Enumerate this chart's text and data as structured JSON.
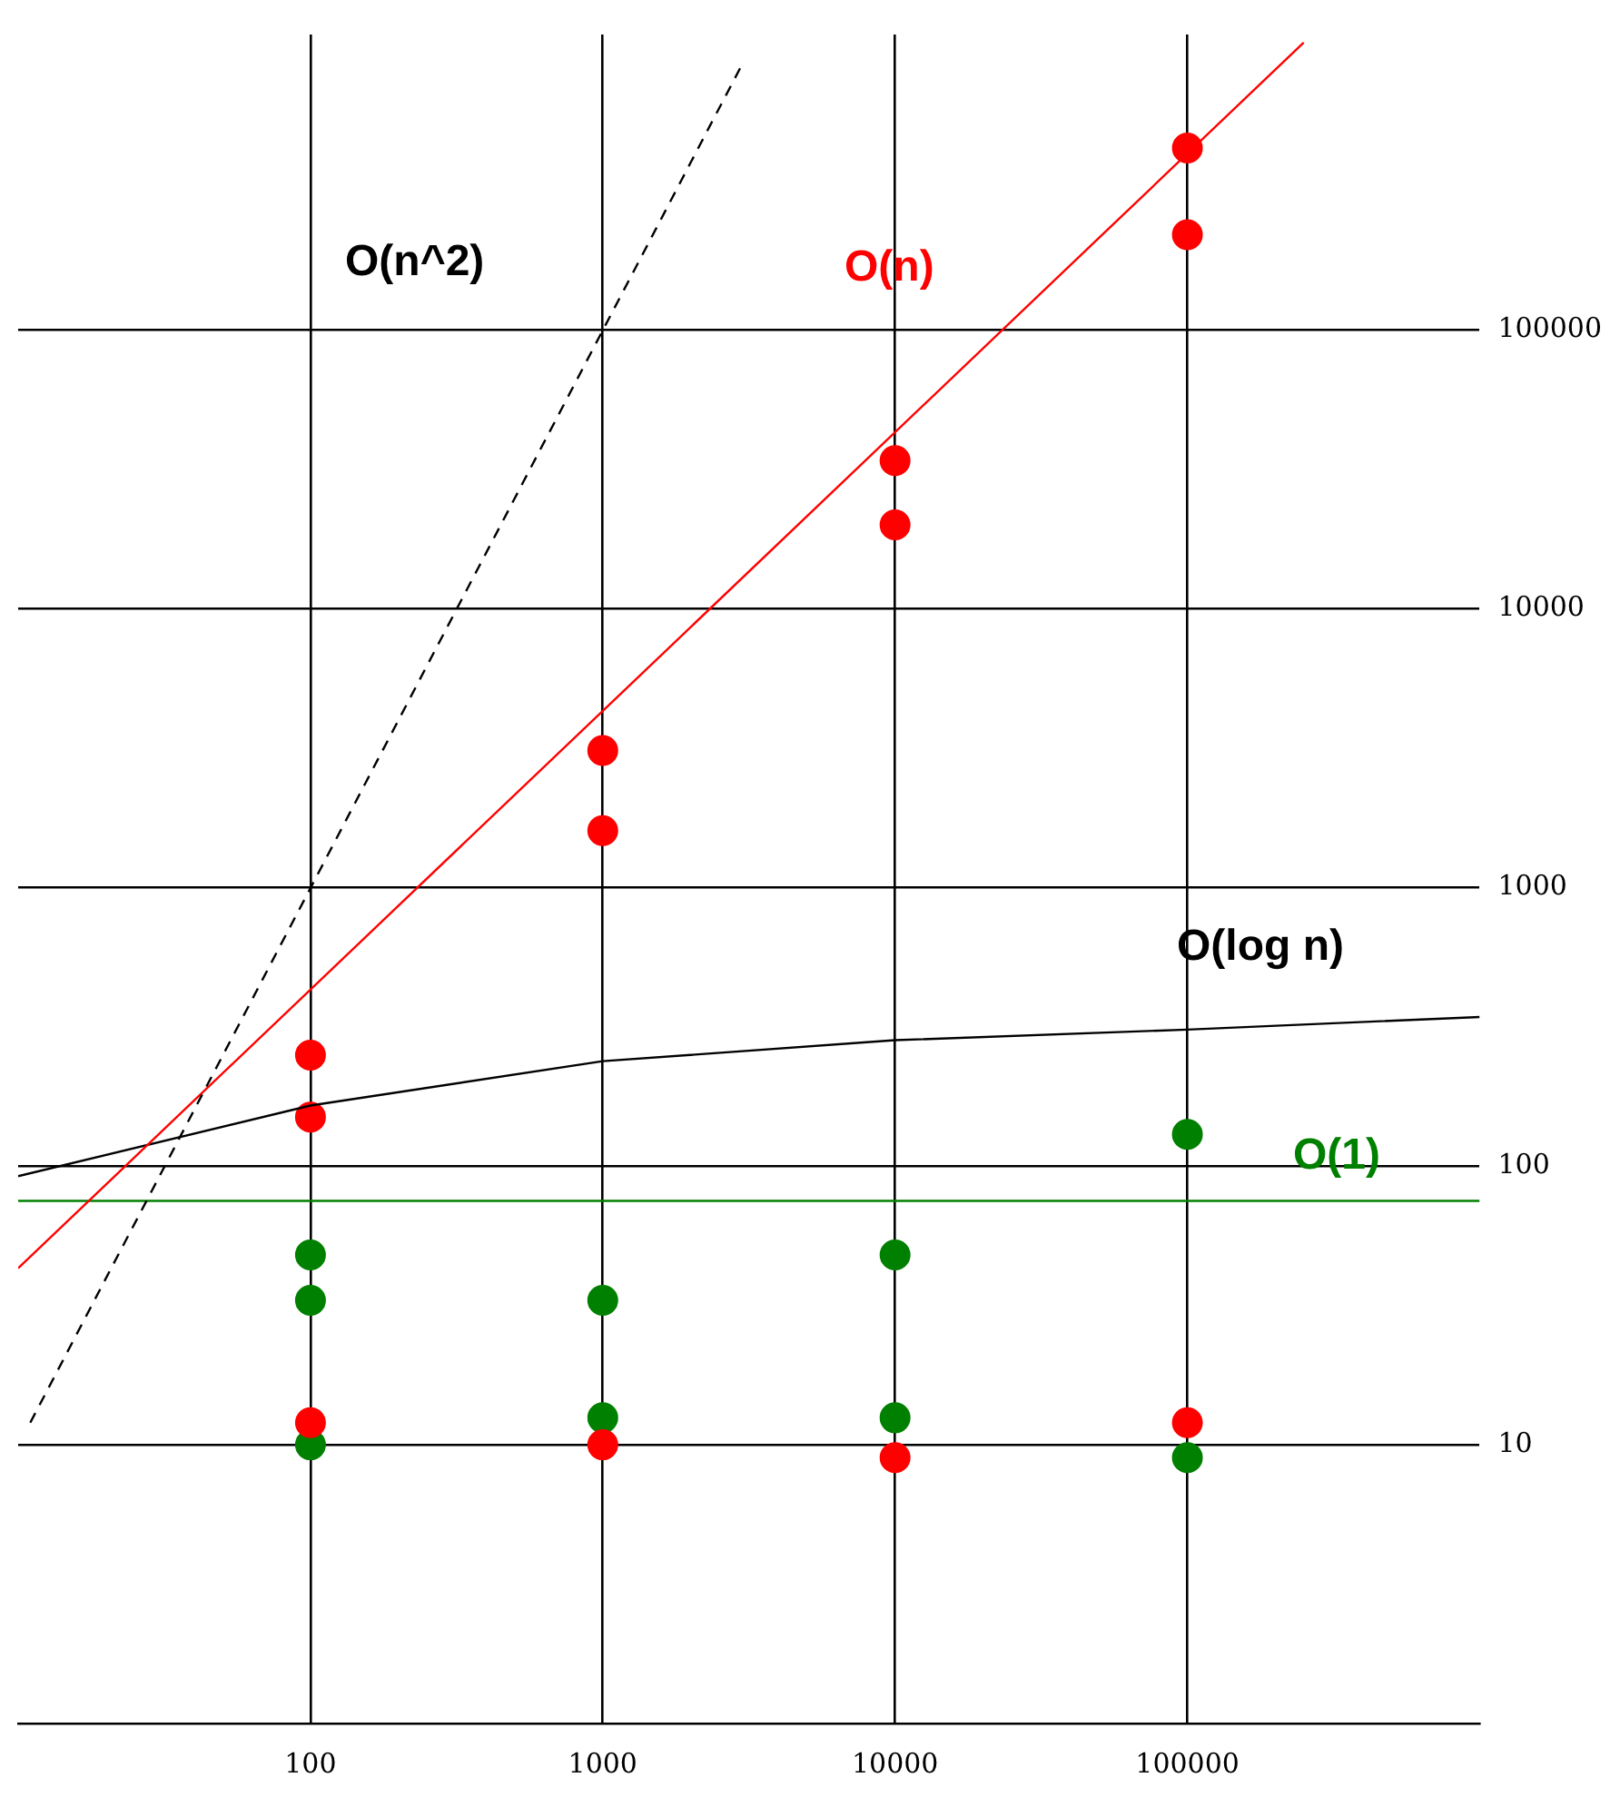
{
  "chart_data": {
    "type": "scatter",
    "log": "xy",
    "xlim": [
      10,
      1000000
    ],
    "ylim": [
      1,
      1150000
    ],
    "xticks": [
      100,
      1000,
      10000,
      100000
    ],
    "yticks": [
      10,
      100,
      1000,
      10000,
      100000
    ],
    "grid": true,
    "marker": "circle",
    "series": [
      {
        "type": "line",
        "name": "O(n^2)",
        "color": "#000000",
        "line_style": "dashed",
        "marker": "none",
        "x": [
          11,
          3000
        ],
        "values": [
          12,
          900000
        ]
      },
      {
        "type": "line",
        "name": "O(n)",
        "color": "#ff0000",
        "line_style": "solid",
        "marker": "none",
        "x": [
          10,
          250000
        ],
        "values": [
          43,
          1075000
        ]
      },
      {
        "type": "line",
        "name": "O(log n)",
        "color": "#000000",
        "line_style": "solid",
        "marker": "none",
        "x": [
          10,
          100,
          1000,
          10000,
          100000,
          1000000
        ],
        "values": [
          92,
          165,
          238,
          283,
          309,
          343
        ]
      },
      {
        "type": "line",
        "name": "O(1)",
        "color": "#008000",
        "line_style": "solid",
        "marker": "none",
        "x": [
          10,
          1000000
        ],
        "values": [
          75,
          75
        ]
      },
      {
        "color": "#ff0000",
        "x": [
          100,
          100,
          100,
          1000,
          1000,
          1000,
          10000,
          10000,
          10000,
          100000,
          100000,
          100000
        ],
        "values": [
          250,
          150,
          12,
          3100,
          1600,
          10,
          34000,
          20000,
          9,
          450000,
          220000,
          12
        ]
      },
      {
        "color": "#008000",
        "x": [
          100,
          100,
          100,
          1000,
          1000,
          10000,
          10000,
          100000,
          100000
        ],
        "values": [
          48,
          33,
          10,
          33,
          12.5,
          48,
          12.5,
          130,
          9
        ]
      }
    ]
  }
}
